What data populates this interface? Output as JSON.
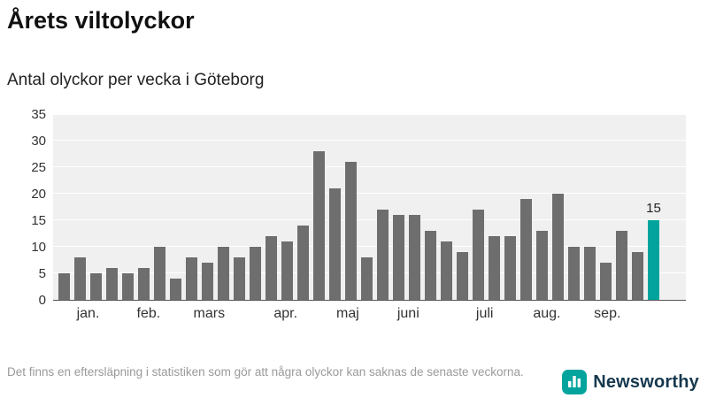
{
  "title": "Årets viltolyckor",
  "subtitle": "Antal olyckor per vecka i Göteborg",
  "footer": {
    "note": "Det finns en eftersläpning i statistiken som gör att några olyckor kan saknas de senaste veckorna.",
    "brand": "Newsworthy"
  },
  "chart_data": {
    "type": "bar",
    "title": "Årets viltolyckor",
    "subtitle": "Antal olyckor per vecka i Göteborg",
    "xlabel": "",
    "ylabel": "",
    "ylim": [
      0,
      35
    ],
    "yticks": [
      0,
      5,
      10,
      15,
      20,
      25,
      30,
      35
    ],
    "grid": true,
    "values": [
      5,
      8,
      5,
      6,
      5,
      6,
      10,
      4,
      8,
      7,
      10,
      8,
      10,
      12,
      11,
      14,
      28,
      21,
      26,
      8,
      17,
      16,
      16,
      13,
      11,
      9,
      17,
      12,
      12,
      19,
      13,
      20,
      10,
      10,
      7,
      13,
      9,
      15
    ],
    "month_ticks": [
      {
        "label": "jan.",
        "week": 1.5
      },
      {
        "label": "feb.",
        "week": 5.3
      },
      {
        "label": "mars",
        "week": 9.1
      },
      {
        "label": "apr.",
        "week": 13.9
      },
      {
        "label": "maj",
        "week": 17.8
      },
      {
        "label": "juni",
        "week": 21.6
      },
      {
        "label": "juli",
        "week": 26.4
      },
      {
        "label": "aug.",
        "week": 30.3
      },
      {
        "label": "sep.",
        "week": 34.1
      }
    ],
    "highlight_index": 37,
    "highlight_label": "15",
    "bar_color": "#6e6e6e",
    "highlight_color": "#00a49d"
  }
}
